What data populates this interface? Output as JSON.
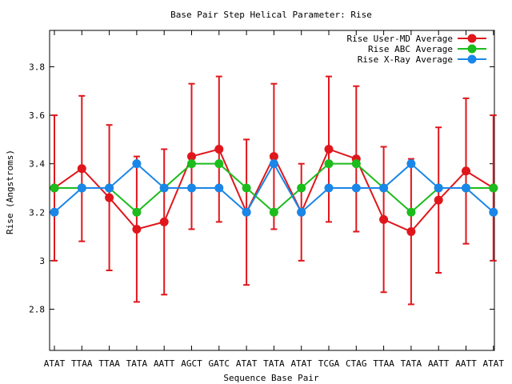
{
  "chart_data": {
    "type": "line",
    "title": "Base Pair Step Helical Parameter: Rise",
    "xlabel": "Sequence Base Pair",
    "ylabel": "Rise (Angstroms)",
    "categories": [
      "ATAT",
      "TTAA",
      "TTAA",
      "TATA",
      "AATT",
      "AGCT",
      "GATC",
      "ATAT",
      "TATA",
      "ATAT",
      "TCGA",
      "CTAG",
      "TTAA",
      "TATA",
      "AATT",
      "AATT",
      "ATAT"
    ],
    "ylim": [
      2.63,
      3.95
    ],
    "yticks": [
      2.8,
      3,
      3.2,
      3.4,
      3.6,
      3.8
    ],
    "ytick_labels": [
      "2.8",
      "3",
      "3.2",
      "3.4",
      "3.6",
      "3.8"
    ],
    "legend_position": "top-right",
    "series": [
      {
        "name": "Rise User-MD Average",
        "color": "#e0161c",
        "values": [
          3.3,
          3.38,
          3.26,
          3.13,
          3.16,
          3.43,
          3.46,
          3.2,
          3.43,
          3.2,
          3.46,
          3.42,
          3.17,
          3.12,
          3.25,
          3.37,
          3.3
        ],
        "err_low": [
          3.0,
          3.08,
          2.96,
          2.83,
          2.86,
          3.13,
          3.16,
          2.9,
          3.13,
          3.0,
          3.16,
          3.12,
          2.87,
          2.82,
          2.95,
          3.07,
          3.0
        ],
        "err_high": [
          3.6,
          3.68,
          3.56,
          3.43,
          3.46,
          3.73,
          3.76,
          3.5,
          3.73,
          3.4,
          3.76,
          3.72,
          3.47,
          3.42,
          3.55,
          3.67,
          3.6
        ]
      },
      {
        "name": "Rise ABC Average",
        "color": "#1cbc1c",
        "values": [
          3.3,
          3.3,
          3.3,
          3.2,
          3.3,
          3.4,
          3.4,
          3.3,
          3.2,
          3.3,
          3.4,
          3.4,
          3.3,
          3.2,
          3.3,
          3.3,
          3.3
        ]
      },
      {
        "name": "Rise X-Ray Average",
        "color": "#1a86e8",
        "values": [
          3.2,
          3.3,
          3.3,
          3.4,
          3.3,
          3.3,
          3.3,
          3.2,
          3.4,
          3.2,
          3.3,
          3.3,
          3.3,
          3.4,
          3.3,
          3.3,
          3.2
        ]
      }
    ]
  }
}
